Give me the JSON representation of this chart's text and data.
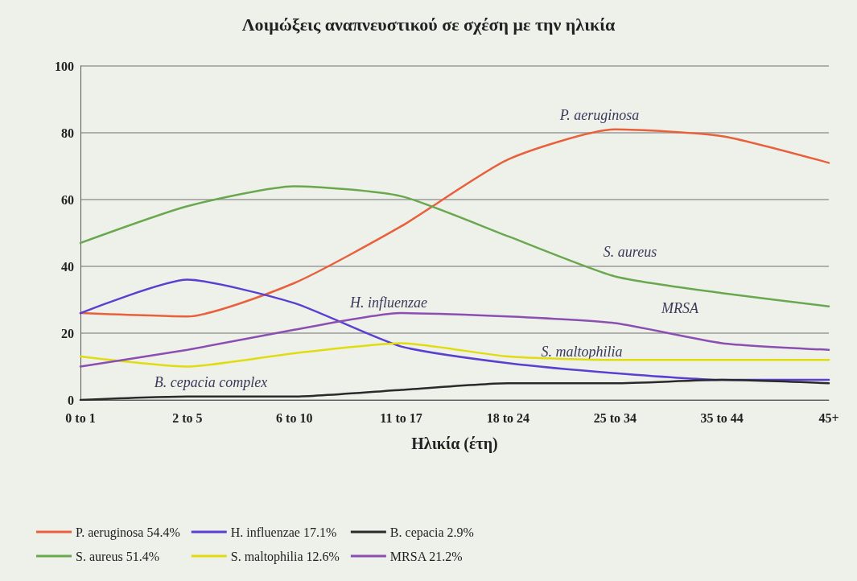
{
  "chart_data": {
    "type": "line",
    "title": "Λοιμώξεις αναπνευστικού σε σχέση με την ηλικία",
    "xlabel": "Ηλικία (έτη)",
    "categories": [
      "0 to 1",
      "2 to 5",
      "6 to 10",
      "11 to 17",
      "18 to 24",
      "25 to 34",
      "35 to 44",
      "45+"
    ],
    "series": [
      {
        "name": "P. aeruginosa 54.4%",
        "color": "#e8603c",
        "values": [
          26,
          25,
          35,
          52,
          72,
          81,
          79,
          71
        ]
      },
      {
        "name": "S. aureus 51.4%",
        "color": "#6aa84f",
        "values": [
          47,
          58,
          64,
          61,
          49,
          37,
          32,
          28
        ]
      },
      {
        "name": "H. influenzae 17.1%",
        "color": "#5a3fd0",
        "values": [
          26,
          36,
          29,
          16,
          11,
          8,
          6,
          6
        ]
      },
      {
        "name": "S. maltophilia 12.6%",
        "color": "#e0dc10",
        "values": [
          13,
          10,
          14,
          17,
          13,
          12,
          12,
          12
        ]
      },
      {
        "name": "B. cepacia 2.9%",
        "color": "#2a2a2a",
        "values": [
          0,
          1,
          1,
          3,
          5,
          5,
          6,
          5
        ]
      },
      {
        "name": "MRSA 21.2%",
        "color": "#8a4fb0",
        "values": [
          10,
          15,
          21,
          26,
          25,
          23,
          17,
          15
        ]
      }
    ],
    "annotations": [
      "P. aeruginosa",
      "S. aureus",
      "H. influenzae",
      "MRSA",
      "S. maltophilia",
      "B. cepacia complex"
    ],
    "ylim": [
      0,
      100
    ],
    "yticks": [
      0,
      20,
      40,
      60,
      80,
      100
    ],
    "grid": "y",
    "legend": "bottom",
    "marker": "none",
    "line_style": "solid"
  }
}
